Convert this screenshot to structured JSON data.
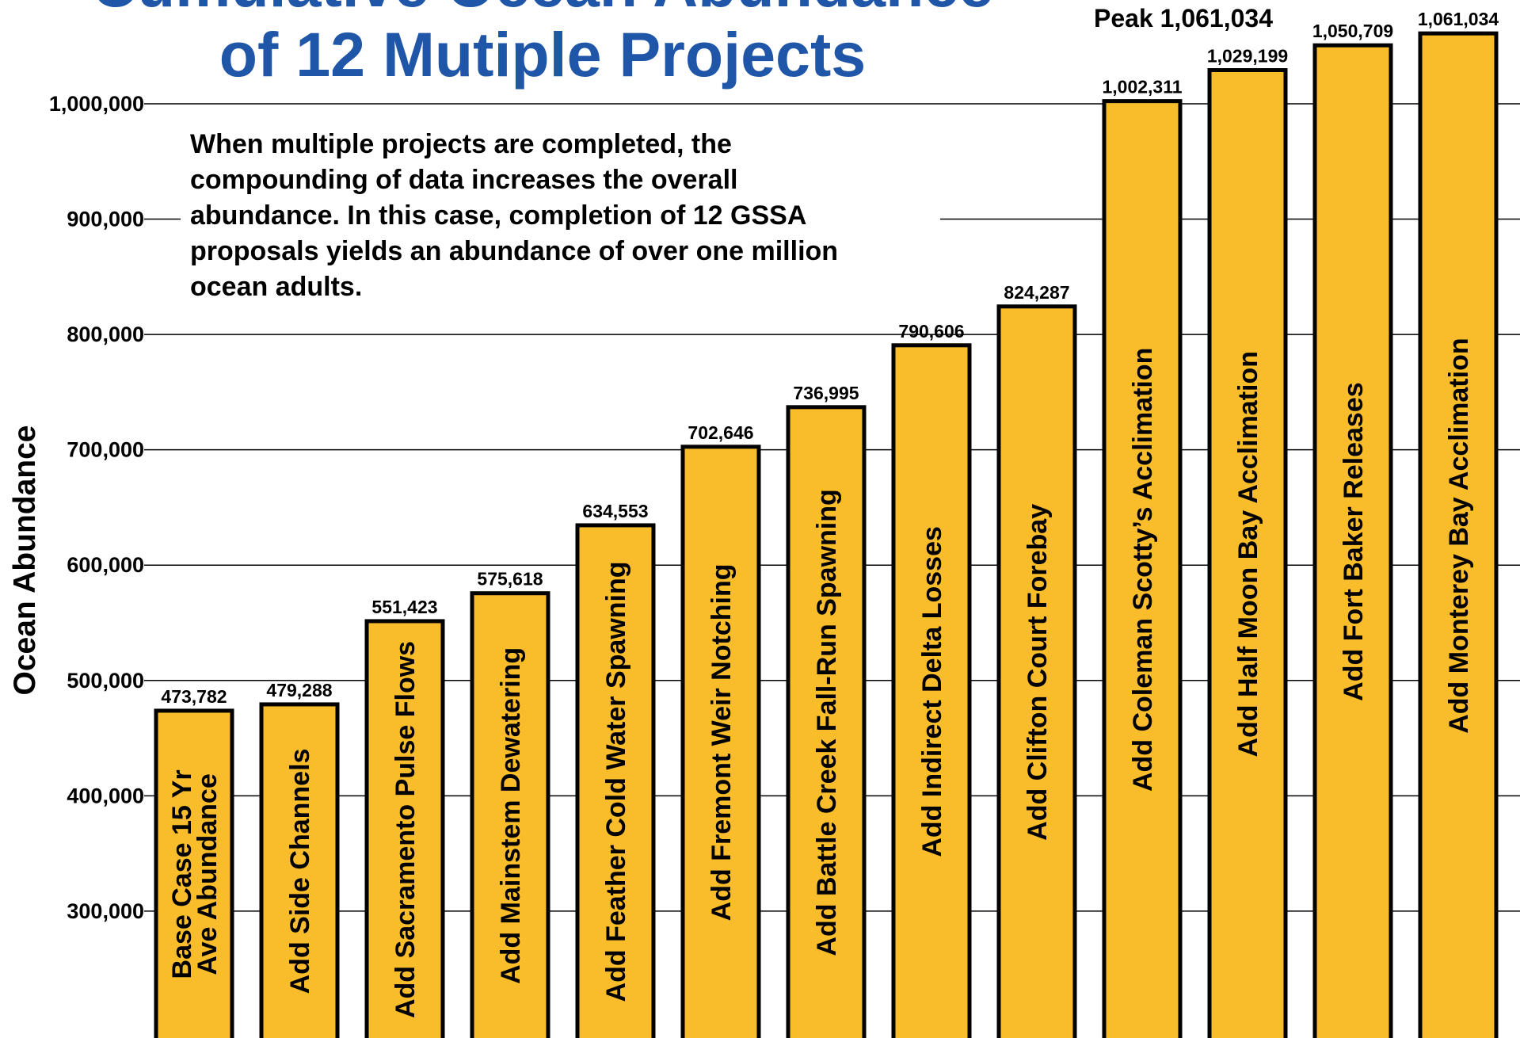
{
  "chart_data": {
    "type": "bar",
    "title": [
      "Cumulative Ocean Abundance",
      "of 12 Mutiple Projects"
    ],
    "annotation": [
      "When multiple projects are completed, the",
      "compounding of data increases the overall",
      "abundance.  In this case, completion of 12 GSSA",
      "proposals yields an abundance of over one million",
      "ocean adults."
    ],
    "peak_label": "Peak 1,061,034",
    "y_label": "Ocean Abundance",
    "categories": [
      "Base Case 15 Yr\nAve Abundance",
      "Add Side Channels",
      "Add Sacramento Pulse Flows",
      "Add Mainstem Dewatering",
      "Add Feather Cold Water Spawning",
      "Add Fremont Weir Notching",
      "Add Battle Creek Fall-Run Spawning",
      "Add Indirect Delta Losses",
      "Add Clifton Court Forebay",
      "Add Coleman Scotty’s Acclimation",
      "Add Half Moon Bay Acclimation",
      "Add Fort Baker Releases",
      "Add Monterey Bay Acclimation"
    ],
    "values": [
      473782,
      479288,
      551423,
      575618,
      634553,
      702646,
      736995,
      790606,
      824287,
      1002311,
      1029199,
      1050709,
      1061034
    ],
    "value_labels": [
      "473,782",
      "479,288",
      "551,423",
      "575,618",
      "634,553",
      "702,646",
      "736,995",
      "790,606",
      "824,287",
      "1,002,311",
      "1,029,199",
      "1,050,709",
      "1,061,034"
    ],
    "color": "#f9bd2c",
    "ylim": [
      190000,
      1090000
    ],
    "yticks": [
      {
        "value": 300000,
        "label": "300,000"
      },
      {
        "value": 400000,
        "label": "400,000"
      },
      {
        "value": 500000,
        "label": "500,000"
      },
      {
        "value": 600000,
        "label": "600,000"
      },
      {
        "value": 700000,
        "label": "700,000"
      },
      {
        "value": 800000,
        "label": "800,000"
      },
      {
        "value": 900000,
        "label": "900,000"
      },
      {
        "value": 1000000,
        "label": "1,000,000"
      }
    ],
    "grid": true
  }
}
